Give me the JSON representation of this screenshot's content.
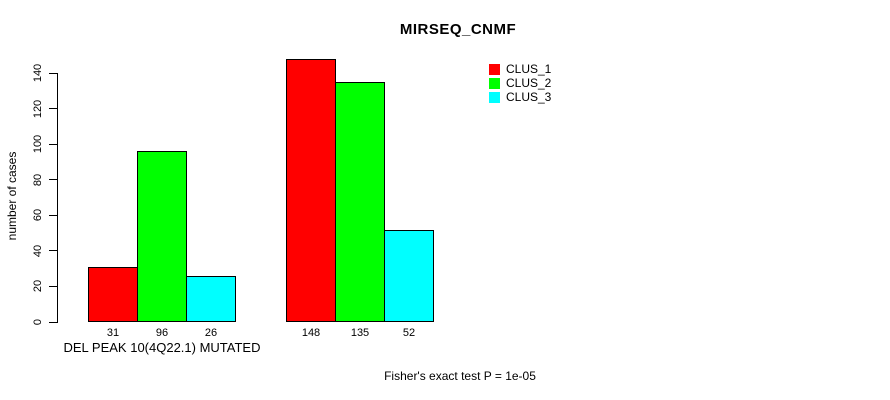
{
  "page": {
    "background_color": "#FFFFFF",
    "text_color": "#000000"
  },
  "chart_data": {
    "type": "bar",
    "title": "MIRSEQ_CNMF",
    "xlabel": "",
    "ylabel": "number of cases",
    "ylim": [
      0,
      140
    ],
    "yticks": [
      0,
      20,
      40,
      60,
      80,
      100,
      120,
      140
    ],
    "grid": false,
    "legend_position": "top-right",
    "bar_border_color": "#000000",
    "series": [
      {
        "name": "CLUS_1",
        "color": "#FF0000"
      },
      {
        "name": "CLUS_2",
        "color": "#00FF00"
      },
      {
        "name": "CLUS_3",
        "color": "#00FFFF"
      }
    ],
    "groups": [
      {
        "label": "DEL PEAK 10(4Q22.1) MUTATED",
        "values": [
          31,
          96,
          26
        ]
      },
      {
        "label": "",
        "values": [
          148,
          135,
          52
        ]
      }
    ],
    "bar_value_labels": [
      [
        31,
        96,
        26
      ],
      [
        148,
        135,
        52
      ]
    ],
    "annotation": "Fisher's exact test P = 1e-05"
  }
}
